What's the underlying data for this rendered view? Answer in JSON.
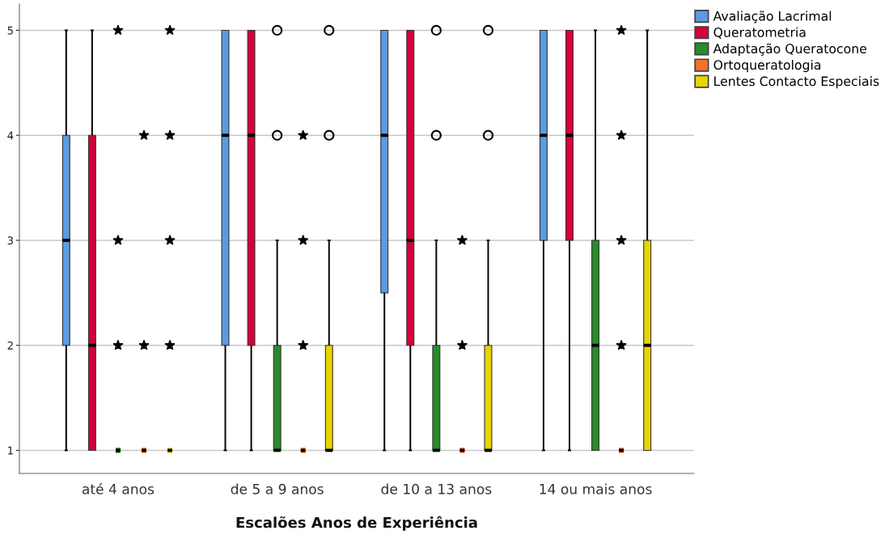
{
  "chart_data": {
    "type": "box",
    "xlabel": "Escalões Anos de Experiência",
    "categories": [
      "até 4 anos",
      "de 5 a 9 anos",
      "de 10 a 13 anos",
      "14 ou mais anos"
    ],
    "series": [
      {
        "name": "Avaliação Lacrimal",
        "color": "#5a9be3",
        "boxes": [
          {
            "low": 1,
            "q1": 2,
            "median": 3,
            "q3": 4,
            "high": 5
          },
          {
            "low": 1,
            "q1": 2,
            "median": 4,
            "q3": 5,
            "high": 5
          },
          {
            "low": 1,
            "q1": 2.5,
            "median": 4,
            "q3": 5,
            "high": 5
          },
          {
            "low": 1,
            "q1": 3,
            "median": 4,
            "q3": 5,
            "high": 5
          }
        ]
      },
      {
        "name": "Queratometria",
        "color": "#d4003a",
        "boxes": [
          {
            "low": 1,
            "q1": 1,
            "median": 2,
            "q3": 4,
            "high": 5
          },
          {
            "low": 1,
            "q1": 2,
            "median": 4,
            "q3": 5,
            "high": 5
          },
          {
            "low": 1,
            "q1": 2,
            "median": 3,
            "q3": 5,
            "high": 5
          },
          {
            "low": 1,
            "q1": 3,
            "median": 4,
            "q3": 5,
            "high": 5
          }
        ]
      },
      {
        "name": "Adaptação Queratocone",
        "color": "#2b8a2b",
        "boxes": [
          {
            "low": 1,
            "q1": 1,
            "median": 1,
            "q3": 1,
            "high": 1,
            "outliers": [
              2,
              3,
              5
            ]
          },
          {
            "low": 1,
            "q1": 1,
            "median": 1,
            "q3": 2,
            "high": 3,
            "outliers": [
              4,
              5
            ]
          },
          {
            "low": 1,
            "q1": 1,
            "median": 1,
            "q3": 2,
            "high": 3,
            "outliers": [
              4,
              5
            ]
          },
          {
            "low": 1,
            "q1": 1,
            "median": 2,
            "q3": 3,
            "high": 5
          }
        ]
      },
      {
        "name": "Ortoqueratologia",
        "color": "#f5702a",
        "boxes": [
          {
            "low": 1,
            "q1": 1,
            "median": 1,
            "q3": 1,
            "high": 1,
            "outliers": [
              2,
              4
            ]
          },
          {
            "low": 1,
            "q1": 1,
            "median": 1,
            "q3": 1,
            "high": 1,
            "outliers": [
              2,
              3,
              4
            ]
          },
          {
            "low": 1,
            "q1": 1,
            "median": 1,
            "q3": 1,
            "high": 1,
            "outliers": [
              2,
              3
            ]
          },
          {
            "low": 1,
            "q1": 1,
            "median": 1,
            "q3": 1,
            "high": 1,
            "outliers": [
              2,
              3,
              4,
              5
            ]
          }
        ]
      },
      {
        "name": "Lentes Contacto Especiais",
        "color": "#e6d500",
        "boxes": [
          {
            "low": 1,
            "q1": 1,
            "median": 1,
            "q3": 1,
            "high": 1,
            "outliers": [
              2,
              3,
              4,
              5
            ]
          },
          {
            "low": 1,
            "q1": 1,
            "median": 1,
            "q3": 2,
            "high": 3,
            "outliers": [
              4,
              5
            ]
          },
          {
            "low": 1,
            "q1": 1,
            "median": 1,
            "q3": 2,
            "high": 3,
            "outliers": [
              4,
              5
            ]
          },
          {
            "low": 1,
            "q1": 1,
            "median": 2,
            "q3": 3,
            "high": 5
          }
        ]
      }
    ],
    "ylim": [
      0.78,
      5.25
    ],
    "yticks": [
      1,
      2,
      3,
      4,
      5
    ],
    "grid": "y",
    "legend": "top right"
  }
}
